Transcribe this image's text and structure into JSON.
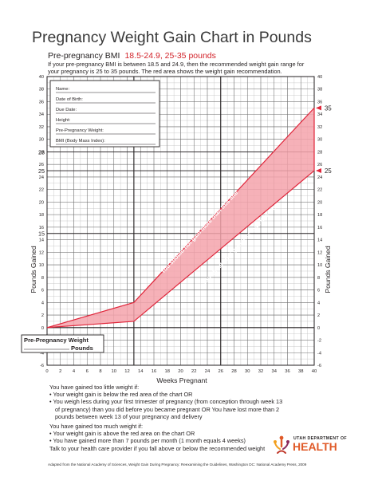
{
  "title": "Pregnancy Weight Gain Chart in Pounds",
  "bmi_label": "Pre-pregnancy BMI",
  "bmi_range": "18.5-24.9, 25-35 pounds",
  "intro_line1": "If your pre-pregnancy BMI is between 18.5 and 24.9, then the recommended weight gain range for",
  "intro_line2": "your pregnancy is 25 to 35 pounds. The red area shows the weight gain recommendation.",
  "form": {
    "fields": [
      "Name:",
      "Date of Birth:",
      "Due Date:",
      "Height:",
      "Pre-Pregnancy Weight:",
      "BMI (Body Mass Index):"
    ]
  },
  "pre_weight_box": {
    "line1": "Pre-Pregnancy Weight",
    "line2": "Pounds"
  },
  "colors": {
    "band_fill": "#f4a3ab",
    "band_stroke": "#e0253a",
    "axis_text": "#231f20"
  },
  "chart_data": {
    "type": "area",
    "xlabel": "Weeks Pregnant",
    "ylabel": "Pounds Gained",
    "xlim": [
      0,
      40
    ],
    "ylim": [
      -6,
      40
    ],
    "xticks": [
      0,
      2,
      4,
      6,
      8,
      10,
      12,
      14,
      16,
      18,
      20,
      22,
      24,
      26,
      28,
      30,
      32,
      34,
      36,
      38,
      40
    ],
    "yticks": [
      -6,
      -4,
      -2,
      0,
      2,
      4,
      6,
      8,
      10,
      12,
      14,
      16,
      18,
      20,
      22,
      24,
      26,
      28,
      30,
      32,
      34,
      36,
      38,
      40
    ],
    "extra_ytick_labels_left": [
      15,
      25,
      28
    ],
    "right_ticks": [
      {
        "y": 35,
        "label": "35"
      },
      {
        "y": 25,
        "label": "25"
      }
    ],
    "grid": true,
    "series": [
      {
        "name": "upper limit",
        "x": [
          0,
          13,
          40
        ],
        "y": [
          0,
          4,
          35
        ]
      },
      {
        "name": "lower limit",
        "x": [
          0,
          13,
          40
        ],
        "y": [
          0,
          1,
          25
        ]
      }
    ],
    "annotations": [
      {
        "text": "You should not gain more than this line",
        "at": [
          23,
          15
        ]
      },
      {
        "text": "You should not gain less than this line",
        "at": [
          29,
          13
        ]
      }
    ]
  },
  "bottom": {
    "too_little": "You have gained too little weight if:",
    "tl_1": "• Your weight gain is below the red area of the chart OR",
    "tl_2": "• You weigh less during your first trimester of pregnancy (from conception through week 13 of pregnancy) than you did before you became pregnant OR You have lost more than 2 pounds between week 13 of your pregnancy and delivery",
    "too_much": "You have gained too much weight if:",
    "tm_1": "• Your weight gain is above the red area on the chart OR",
    "tm_2": "• You have gained more than 7 pounds per month (1 month equals 4 weeks)",
    "talk": "Talk to your health care provider if you fall above or below the recommended weight"
  },
  "footer": "Adapted from the National Academy of Sciences, Weight Gain During Pregnancy: Reexamining the Guidelines, Washington DC: National Academy Press, 2009",
  "logo": {
    "dept": "UTAH DEPARTMENT OF",
    "name": "HEALTH"
  }
}
